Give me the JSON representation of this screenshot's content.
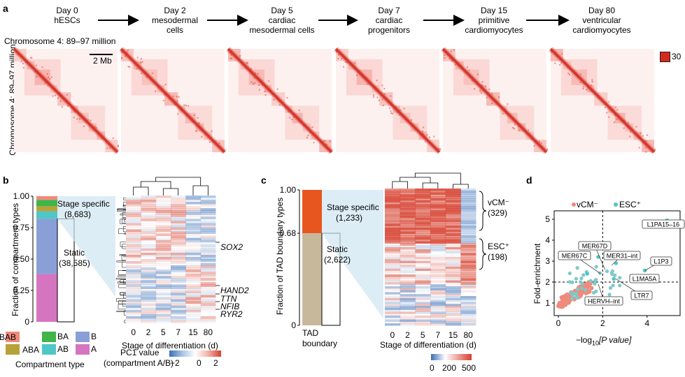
{
  "panel_a": {
    "letter": "a",
    "stages": [
      {
        "line1": "Day 0",
        "line2": "hESCs"
      },
      {
        "line1": "Day 2",
        "line2": "mesodermal",
        "line3": "cells"
      },
      {
        "line1": "Day 5",
        "line2": "cardiac",
        "line3": "mesodermal cells"
      },
      {
        "line1": "Day 7",
        "line2": "cardiac",
        "line3": "progenitors"
      },
      {
        "line1": "Day 15",
        "line2": "primitive",
        "line3": "cardiomyocytes"
      },
      {
        "line1": "Day 80",
        "line2": "ventricular",
        "line3": "cardiomyocytes"
      }
    ],
    "x_axis_label": "Chromosome 4: 89–97 million",
    "y_axis_label": "Chromosome 4: 89–97 million",
    "scale_bar": "2 Mb",
    "color_max": "30",
    "heatmap_color": "#d42a1e"
  },
  "panel_b": {
    "letter": "b",
    "y_axis_label": "Fraction of compartment types",
    "y_ticks": [
      "0",
      "0.25",
      "0.50",
      "0.75",
      "1.00"
    ],
    "stage_specific": "Stage specific",
    "stage_specific_n": "(8,683)",
    "static": "Static",
    "static_n": "(38,585)",
    "genes": [
      "SOX2",
      "HAND2",
      "TTN",
      "NFIB",
      "RYR2"
    ],
    "x_ticks": [
      "0",
      "2",
      "5",
      "7",
      "15",
      "80"
    ],
    "x_axis_label": "Stage of differentiation (d)",
    "legend_title": "Compartment type",
    "legend": [
      {
        "label": "BAB",
        "color": "#f08a7c"
      },
      {
        "label": "BA",
        "color": "#3fb54a"
      },
      {
        "label": "B",
        "color": "#8a9fd6"
      },
      {
        "label": "ABA",
        "color": "#b8a237"
      },
      {
        "label": "AB",
        "color": "#4fc7c7"
      },
      {
        "label": "A",
        "color": "#d575c0"
      }
    ],
    "colorbar_title_1": "PC1 value",
    "colorbar_title_2": "(compartment A/B)",
    "colorbar_ticks": [
      "−2",
      "0",
      "2"
    ]
  },
  "panel_c": {
    "letter": "c",
    "y_axis_label": "Fraction of TAD boundary types",
    "y_ticks": [
      "0",
      "0.68",
      "1.00"
    ],
    "stage_specific": "Stage specific",
    "stage_specific_n": "(1,233)",
    "static": "Static",
    "static_n": "(2,622)",
    "bar_label_1": "TAD",
    "bar_label_2": "boundary",
    "vcm_label": "vCM⁻",
    "vcm_n": "(329)",
    "esc_label": "ESC⁺",
    "esc_n": "(198)",
    "x_ticks": [
      "0",
      "2",
      "5",
      "7",
      "15",
      "80"
    ],
    "x_axis_label": "Stage of differentiation (d)",
    "colorbar_ticks": [
      "0",
      "200",
      "500"
    ],
    "colors": {
      "specific": "#e8561f",
      "static": "#c8b89a"
    }
  },
  "panel_d": {
    "letter": "d",
    "legend": [
      {
        "label": "vCM⁻",
        "color": "#f08a7c"
      },
      {
        "label": "ESC⁺",
        "color": "#4fc7c7"
      }
    ],
    "y_axis_label": "Fold-enrichment",
    "x_axis_label_pre": "−log",
    "x_axis_label_sub": "10",
    "x_axis_label_post": "[P value]",
    "x_ticks": [
      "0",
      "2",
      "4"
    ],
    "y_ticks": [
      "1",
      "2",
      "3",
      "4",
      "5"
    ],
    "annotations": [
      "L1PA15–16",
      "MER67D",
      "MER67C",
      "MER31–int",
      "L1P3",
      "L1MA5A",
      "LTR7",
      "HERVH–int"
    ]
  }
}
